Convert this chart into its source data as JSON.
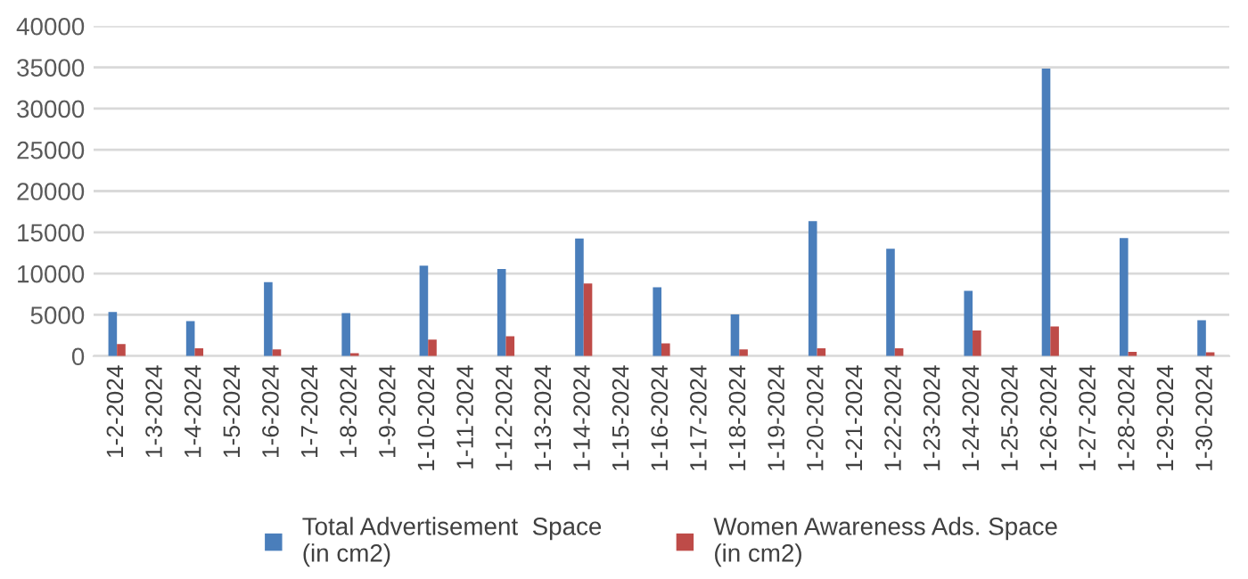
{
  "chart_data": {
    "type": "bar",
    "categories": [
      "1-2-2024",
      "1-3-2024",
      "1-4-2024",
      "1-5-2024",
      "1-6-2024",
      "1-7-2024",
      "1-8-2024",
      "1-9-2024",
      "1-10-2024",
      "1-11-2024",
      "1-12-2024",
      "1-13-2024",
      "1-14-2024",
      "1-15-2024",
      "1-16-2024",
      "1-17-2024",
      "1-18-2024",
      "1-19-2024",
      "1-20-2024",
      "1-21-2024",
      "1-22-2024",
      "1-23-2024",
      "1-24-2024",
      "1-25-2024",
      "1-26-2024",
      "1-27-2024",
      "1-28-2024",
      "1-29-2024",
      "1-30-2024"
    ],
    "series": [
      {
        "name": "Total Advertisement  Space\n(in cm2)",
        "color": "#4a7ebb",
        "values": [
          5350,
          0,
          4250,
          0,
          8950,
          0,
          5200,
          0,
          10950,
          0,
          10550,
          0,
          14250,
          0,
          8350,
          0,
          5050,
          0,
          16350,
          0,
          13000,
          0,
          7900,
          0,
          34850,
          0,
          14300,
          0,
          4350
        ]
      },
      {
        "name": "Women Awareness Ads. Space\n(in cm2)",
        "color": "#be4b48",
        "values": [
          1470,
          0,
          950,
          0,
          800,
          0,
          350,
          0,
          2000,
          0,
          2400,
          0,
          8800,
          0,
          1550,
          0,
          800,
          0,
          950,
          0,
          950,
          0,
          3100,
          0,
          3600,
          0,
          500,
          0,
          450
        ]
      }
    ],
    "ylim": [
      0,
      40000
    ],
    "yticks": [
      0,
      5000,
      10000,
      15000,
      20000,
      25000,
      30000,
      35000,
      40000
    ],
    "grid": "y",
    "legend": "bottom"
  }
}
